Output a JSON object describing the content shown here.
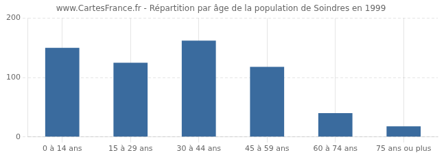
{
  "chart_data": {
    "type": "bar",
    "title": "www.CartesFrance.fr - Répartition par âge de la population de Soindres en 1999",
    "categories": [
      "0 à 14 ans",
      "15 à 29 ans",
      "30 à 44 ans",
      "45 à 59 ans",
      "60 à 74 ans",
      "75 ans ou plus"
    ],
    "values": [
      150,
      125,
      162,
      118,
      40,
      18
    ],
    "color": "#3a6b9e",
    "ylim": [
      0,
      200
    ],
    "yticks": [
      0,
      100,
      200
    ],
    "grid": true
  }
}
